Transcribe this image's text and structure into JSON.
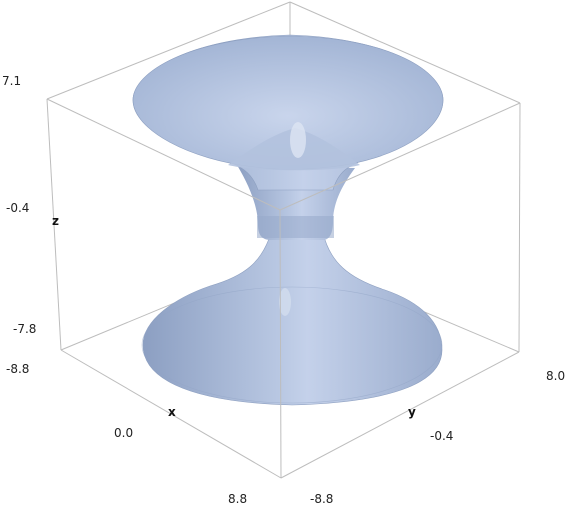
{
  "plot": {
    "type": "surface-3d",
    "surface_color": "#a7b8d6",
    "surface_shadow": "#7f93b8",
    "box_color": "#bdbdbd",
    "axes": {
      "x": {
        "label": "x",
        "ticks": [
          "0.0",
          "8.8"
        ]
      },
      "y": {
        "label": "y",
        "ticks": [
          "-8.8",
          "-0.4",
          "8.0"
        ]
      },
      "z": {
        "label": "z",
        "ticks": [
          "7.1",
          "-0.4",
          "-7.8",
          "-8.8"
        ]
      }
    }
  }
}
